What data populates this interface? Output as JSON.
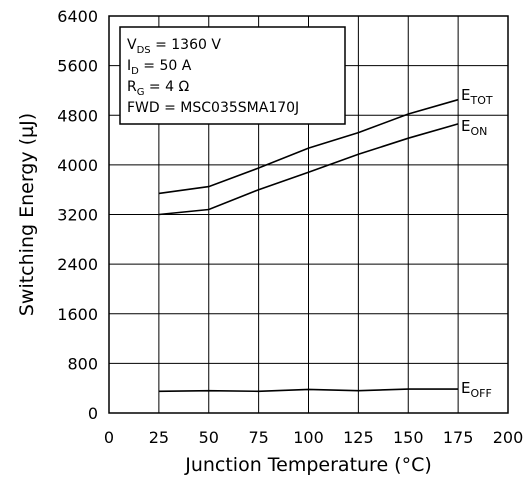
{
  "chart_data": {
    "type": "line",
    "title": "",
    "xlabel": "Junction Temperature (°C)",
    "ylabel": "Switching Energy (µJ)",
    "xlim": [
      0,
      200
    ],
    "ylim": [
      0,
      6400
    ],
    "x_ticks": [
      "0",
      "25",
      "50",
      "75",
      "100",
      "125",
      "150",
      "175",
      "200"
    ],
    "y_ticks": [
      "0",
      "800",
      "1600",
      "2400",
      "3200",
      "4000",
      "4800",
      "5600",
      "6400"
    ],
    "grid": true,
    "x": [
      25,
      50,
      75,
      100,
      125,
      150,
      175
    ],
    "series": [
      {
        "name": "E_TOT",
        "main": "E",
        "sub": "TOT",
        "values": [
          3540,
          3650,
          3950,
          4270,
          4520,
          4820,
          5050
        ]
      },
      {
        "name": "E_ON",
        "main": "E",
        "sub": "ON",
        "values": [
          3200,
          3280,
          3600,
          3880,
          4170,
          4430,
          4660
        ]
      },
      {
        "name": "E_OFF",
        "main": "E",
        "sub": "OFF",
        "values": [
          350,
          360,
          350,
          380,
          360,
          385,
          385
        ]
      }
    ],
    "legend": {
      "placement": "top-left",
      "lines": [
        {
          "main": "V",
          "sub": "DS",
          "rest": " = 1360 V"
        },
        {
          "main": "I",
          "sub": "D",
          "rest": " = 50 A"
        },
        {
          "main": "R",
          "sub": "G",
          "rest": " = 4 Ω"
        },
        {
          "main": "FWD = MSC035SMA170J",
          "sub": "",
          "rest": ""
        }
      ]
    },
    "colors": {
      "line": "#000000",
      "grid": "#000000",
      "background": "#ffffff"
    }
  }
}
